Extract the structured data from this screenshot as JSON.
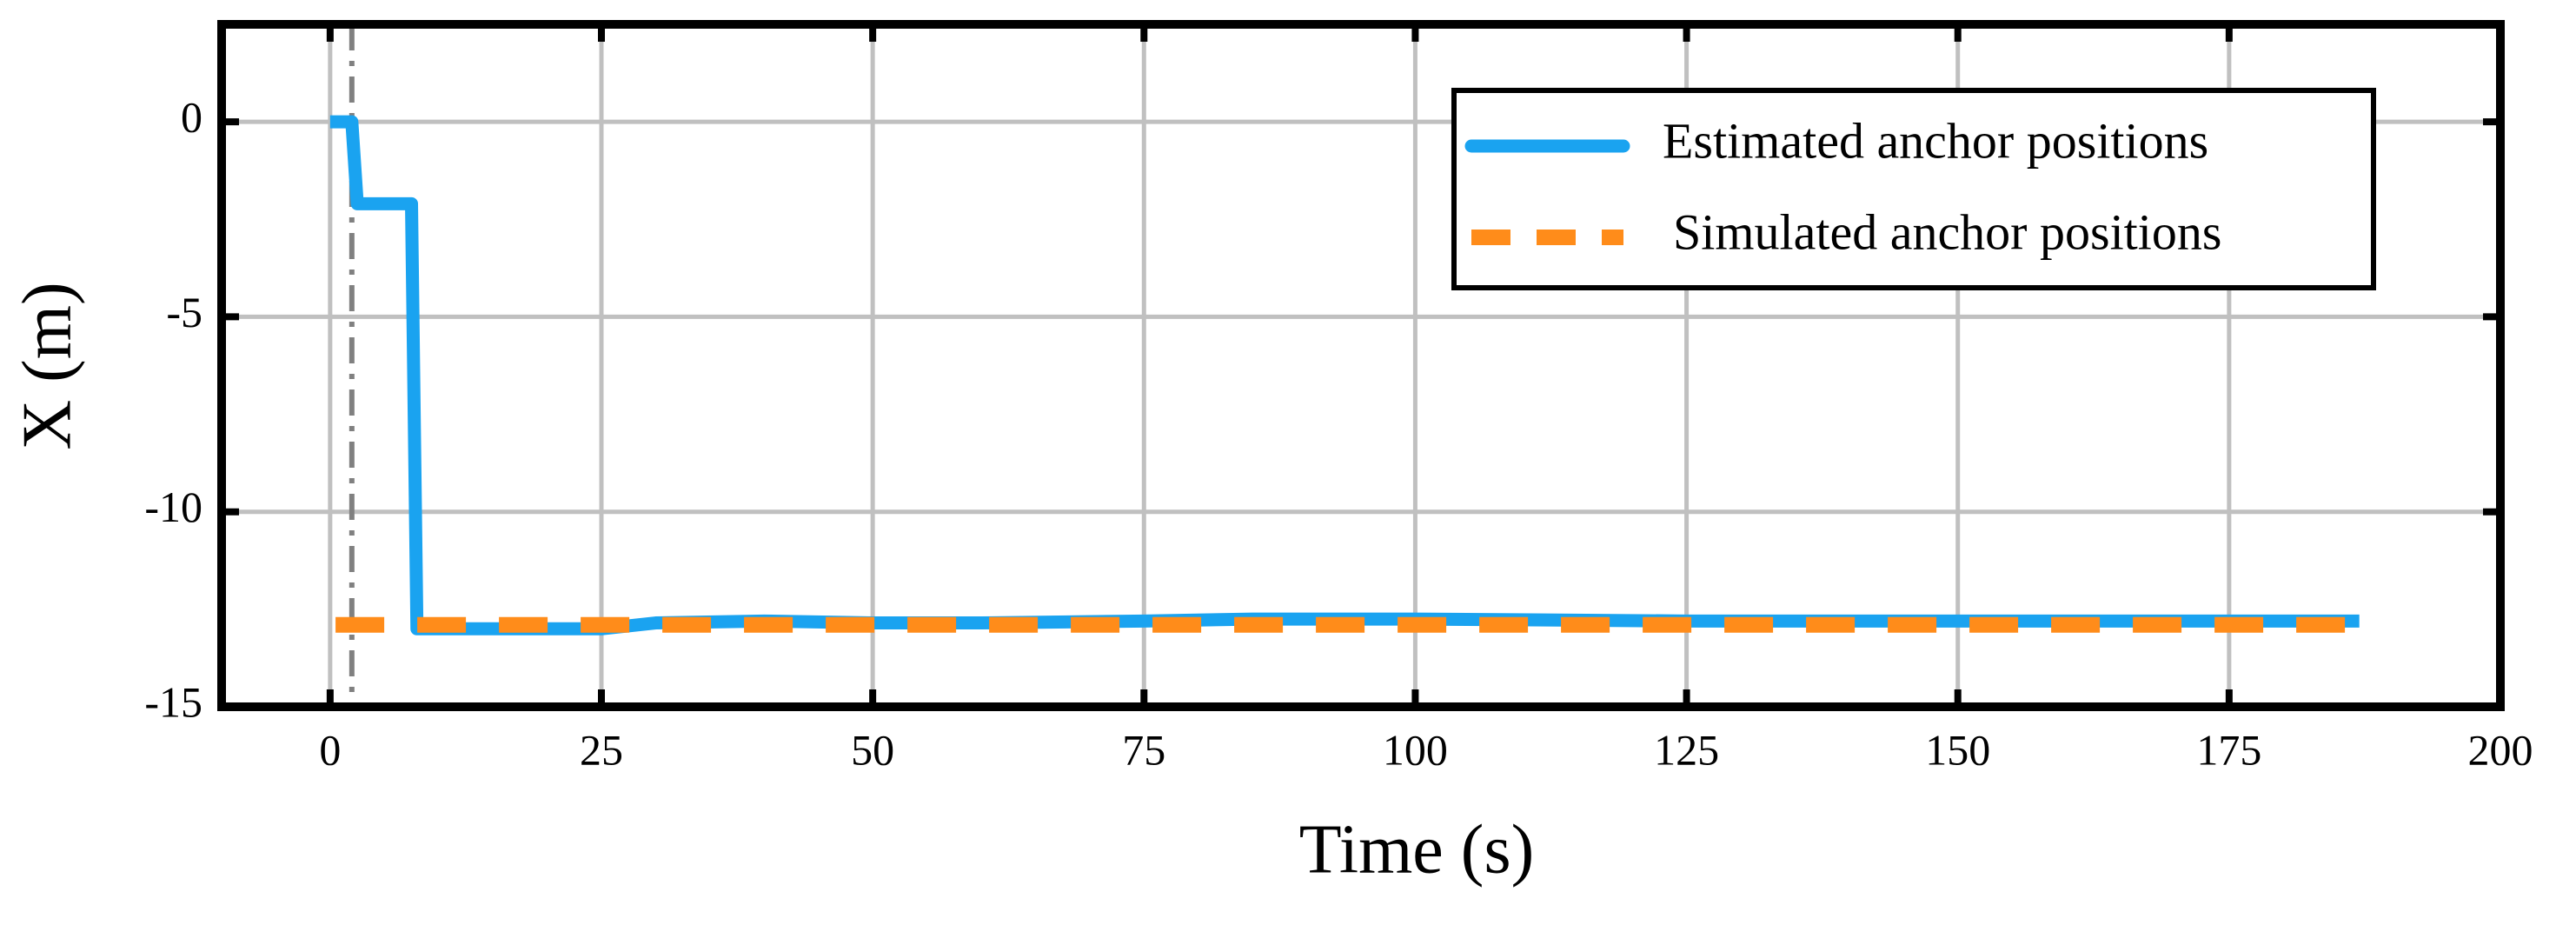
{
  "chart_data": {
    "type": "line",
    "xlabel": "Time (s)",
    "ylabel": "X (m)",
    "xlim": [
      -10,
      200
    ],
    "ylim": [
      -15,
      2.5
    ],
    "xticks": [
      0,
      25,
      50,
      75,
      100,
      125,
      150,
      175,
      200
    ],
    "yticks": [
      -15,
      -10,
      -5,
      0
    ],
    "grid": true,
    "legend": "upper right",
    "vline": 2,
    "series": [
      {
        "name": "Estimated anchor positions",
        "color": "#1aa3f0",
        "style": "solid",
        "x": [
          0,
          2,
          2.5,
          7,
          7.5,
          8,
          15,
          25,
          30,
          40,
          50,
          60,
          75,
          85,
          100,
          125,
          150,
          170,
          187
        ],
        "values": [
          0,
          0,
          -2.1,
          -2.1,
          -2.1,
          -13,
          -13,
          -13,
          -12.85,
          -12.8,
          -12.85,
          -12.85,
          -12.8,
          -12.75,
          -12.75,
          -12.8,
          -12.8,
          -12.8,
          -12.8
        ]
      },
      {
        "name": "Simulated anchor positions",
        "color": "#ff8c1a",
        "style": "dashed",
        "x": [
          0.5,
          187
        ],
        "values": [
          -12.9,
          -12.9
        ]
      }
    ]
  }
}
